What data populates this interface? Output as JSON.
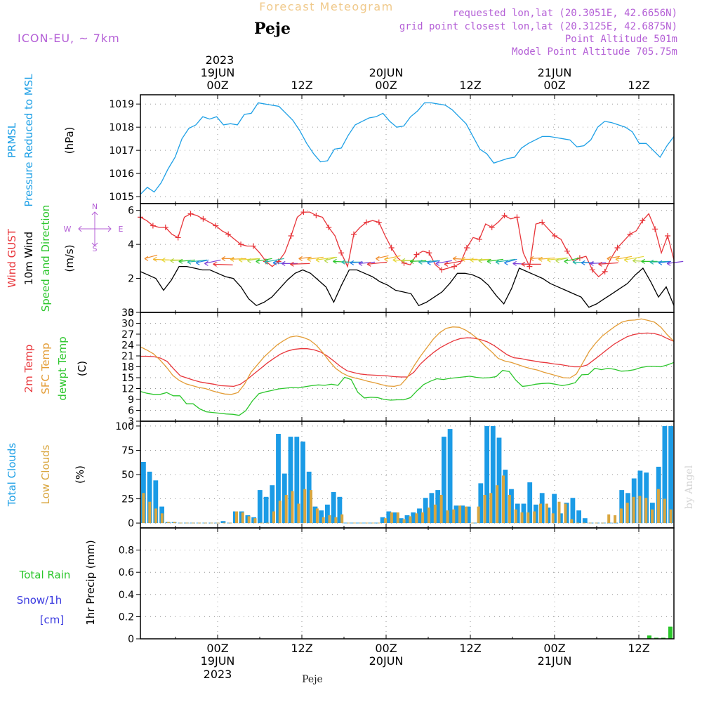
{
  "header": {
    "title": "Forecast Meteogram",
    "location": "Peje",
    "model": "ICON-EU, ~ 7km",
    "requested": "requested lon,lat (20.3051E, 42.6656N)",
    "grid_point": "grid point closest lon,lat (20.3125E, 42.6875N)",
    "point_altitude": "Point Altitude 501m",
    "model_altitude": "Model Point Altitude 705.75m",
    "footer_location": "Peje",
    "watermark": "by Angel"
  },
  "time_axis": {
    "top_year": "2023",
    "labels": [
      {
        "hour": 24,
        "l1": "00Z",
        "l2": "19JUN",
        "l3": "2023"
      },
      {
        "hour": 36,
        "l1": "12Z",
        "l2": "",
        "l3": ""
      },
      {
        "hour": 48,
        "l1": "00Z",
        "l2": "20JUN",
        "l3": ""
      },
      {
        "hour": 60,
        "l1": "12Z",
        "l2": "",
        "l3": ""
      },
      {
        "hour": 72,
        "l1": "00Z",
        "l2": "21JUN",
        "l3": ""
      },
      {
        "hour": 84,
        "l1": "12Z",
        "l2": "",
        "l3": ""
      }
    ],
    "start_hour": 13,
    "end_hour": 89
  },
  "chart_data": [
    {
      "type": "line",
      "name": "pressure",
      "ylabels": [
        "PRMSL",
        "Pressure Reduced to MSL",
        "(hPa)"
      ],
      "ylim": [
        1014.7,
        1019.4
      ],
      "ticks": [
        1015,
        1016,
        1017,
        1018,
        1019
      ],
      "series": [
        {
          "name": "PRMSL",
          "color": "#1ea0e6",
          "values": [
            1015.1,
            1015.4,
            1015.2,
            1015.6,
            1016.2,
            1016.7,
            1017.5,
            1017.95,
            1018.1,
            1018.45,
            1018.35,
            1018.45,
            1018.1,
            1018.15,
            1018.1,
            1018.55,
            1018.6,
            1019.05,
            1019.0,
            1018.95,
            1018.9,
            1018.6,
            1018.3,
            1017.85,
            1017.3,
            1016.85,
            1016.5,
            1016.55,
            1017.05,
            1017.1,
            1017.65,
            1018.1,
            1018.25,
            1018.4,
            1018.45,
            1018.6,
            1018.25,
            1018.0,
            1018.05,
            1018.45,
            1018.7,
            1019.05,
            1019.05,
            1019.0,
            1018.95,
            1018.75,
            1018.45,
            1018.15,
            1017.6,
            1017.05,
            1016.85,
            1016.45,
            1016.55,
            1016.65,
            1016.7,
            1017.1,
            1017.3,
            1017.45,
            1017.6,
            1017.6,
            1017.55,
            1017.5,
            1017.45,
            1017.15,
            1017.2,
            1017.45,
            1018.0,
            1018.25,
            1018.2,
            1018.1,
            1018.0,
            1017.8,
            1017.3,
            1017.3,
            1017.0,
            1016.7,
            1017.2,
            1017.6
          ]
        }
      ]
    },
    {
      "type": "line",
      "name": "wind",
      "ylabels": [
        "Wind GUST",
        "10m Wind",
        "Speed and Direction",
        "(m/s)"
      ],
      "ylim": [
        0,
        6.4
      ],
      "ticks": [
        0,
        2,
        4,
        6
      ],
      "compass": [
        "N",
        "W",
        "E",
        "S"
      ],
      "series": [
        {
          "name": "Wind GUST",
          "color": "#e8353a",
          "values": [
            5.6,
            5.4,
            5.1,
            5.0,
            5.0,
            4.6,
            4.4,
            5.6,
            5.8,
            5.7,
            5.5,
            5.3,
            5.1,
            4.8,
            4.6,
            4.3,
            4.0,
            3.9,
            3.9,
            3.5,
            3.0,
            2.7,
            3.0,
            3.5,
            4.5,
            5.6,
            5.9,
            5.9,
            5.7,
            5.6,
            5.0,
            4.5,
            3.5,
            2.7,
            4.6,
            5.0,
            5.3,
            5.4,
            5.3,
            4.5,
            3.8,
            3.2,
            2.9,
            2.8,
            3.4,
            3.6,
            3.5,
            2.8,
            2.5,
            2.6,
            2.7,
            2.9,
            3.8,
            4.4,
            4.3,
            5.2,
            5.0,
            5.3,
            5.7,
            5.5,
            5.6,
            3.5,
            2.7,
            5.2,
            5.3,
            4.9,
            4.5,
            4.3,
            3.6,
            3.0,
            3.2,
            3.3,
            2.5,
            2.1,
            2.4,
            3.2,
            3.8,
            4.2,
            4.6,
            4.8,
            5.4,
            5.8,
            4.9,
            3.5,
            4.5,
            3.1
          ]
        },
        {
          "name": "10m Wind",
          "color": "#000000",
          "values": [
            2.4,
            2.2,
            2.0,
            1.3,
            1.9,
            2.7,
            2.7,
            2.6,
            2.5,
            2.5,
            2.3,
            2.1,
            2.0,
            1.5,
            0.8,
            0.4,
            0.6,
            0.9,
            1.4,
            1.9,
            2.3,
            2.5,
            2.3,
            1.9,
            1.5,
            0.6,
            1.6,
            2.5,
            2.5,
            2.3,
            2.1,
            1.8,
            1.6,
            1.3,
            1.2,
            1.1,
            0.4,
            0.6,
            0.9,
            1.2,
            1.7,
            2.3,
            2.3,
            2.2,
            2.0,
            1.6,
            1.0,
            0.5,
            1.4,
            2.6,
            2.4,
            2.2,
            2.0,
            1.7,
            1.5,
            1.3,
            1.1,
            0.9,
            0.3,
            0.5,
            0.8,
            1.1,
            1.4,
            1.7,
            2.2,
            2.6,
            1.8,
            0.9,
            1.5,
            0.4
          ]
        }
      ]
    },
    {
      "type": "line",
      "name": "temperature",
      "ylabels": [
        "2m Temp",
        "SFC Temp",
        "dewpt Temp",
        "(C)"
      ],
      "ylim": [
        3,
        33
      ],
      "ticks": [
        3,
        6,
        9,
        12,
        15,
        18,
        21,
        24,
        27,
        30,
        33
      ],
      "series": [
        {
          "name": "2m Temp",
          "color": "#e8353a",
          "values": [
            20.9,
            20.9,
            20.8,
            20.4,
            19.5,
            17.4,
            15.5,
            14.9,
            14.3,
            13.8,
            13.5,
            13.2,
            12.8,
            12.7,
            12.6,
            13.2,
            14.5,
            16.0,
            17.5,
            19.0,
            20.3,
            21.5,
            22.3,
            22.8,
            23.0,
            23.0,
            22.7,
            22.1,
            21.0,
            19.6,
            18.1,
            16.9,
            16.4,
            16.0,
            15.8,
            15.7,
            15.6,
            15.5,
            15.3,
            15.2,
            15.2,
            16.5,
            18.8,
            20.5,
            22.0,
            23.3,
            24.3,
            25.2,
            25.8,
            26.0,
            25.9,
            25.5,
            24.9,
            23.9,
            22.6,
            21.3,
            20.5,
            20.3,
            19.9,
            19.6,
            19.3,
            19.1,
            18.8,
            18.6,
            18.3,
            18.0,
            18.0,
            18.5,
            19.9,
            21.3,
            22.8,
            24.2,
            25.3,
            26.3,
            26.9,
            27.2,
            27.3,
            27.2,
            26.7,
            25.8,
            25.0
          ]
        },
        {
          "name": "SFC Temp",
          "color": "#e39c35",
          "values": [
            23.5,
            22.6,
            21.6,
            19.9,
            17.9,
            15.6,
            14.2,
            13.3,
            12.8,
            12.3,
            12.0,
            11.4,
            10.9,
            10.5,
            10.4,
            10.9,
            13.2,
            16.5,
            18.6,
            20.7,
            22.4,
            24.0,
            25.2,
            26.2,
            26.5,
            26.1,
            25.4,
            24.0,
            22.0,
            19.6,
            17.6,
            16.3,
            15.4,
            14.9,
            14.5,
            14.0,
            13.6,
            13.1,
            12.7,
            12.6,
            13.0,
            15.0,
            18.1,
            20.8,
            23.2,
            25.6,
            27.4,
            28.6,
            29.0,
            28.9,
            28.1,
            26.9,
            25.5,
            23.7,
            22.1,
            20.3,
            19.6,
            19.2,
            18.6,
            18.0,
            17.5,
            17.1,
            16.5,
            16.0,
            15.5,
            15.0,
            14.9,
            16.0,
            19.1,
            22.3,
            24.6,
            26.5,
            27.9,
            29.2,
            30.3,
            30.8,
            30.9,
            31.2,
            30.8,
            30.3,
            28.9,
            26.8,
            25.0
          ]
        },
        {
          "name": "dewpt Temp",
          "color": "#2bc62b",
          "values": [
            11.2,
            10.7,
            10.4,
            10.4,
            10.9,
            10.0,
            10.0,
            7.8,
            7.8,
            6.4,
            5.6,
            5.4,
            5.2,
            5.0,
            4.9,
            4.6,
            5.9,
            8.6,
            10.6,
            11.1,
            11.5,
            11.9,
            12.1,
            12.3,
            12.2,
            12.5,
            12.8,
            13.0,
            12.9,
            13.2,
            12.9,
            15.1,
            14.5,
            11.0,
            9.4,
            9.6,
            9.5,
            9.0,
            8.8,
            8.9,
            8.9,
            9.5,
            11.4,
            13.1,
            14.0,
            14.7,
            14.5,
            14.8,
            15.0,
            15.2,
            15.4,
            15.1,
            14.9,
            15.0,
            15.3,
            17.0,
            16.7,
            14.3,
            12.6,
            12.8,
            13.2,
            13.4,
            13.5,
            13.2,
            12.8,
            13.1,
            13.6,
            15.8,
            15.9,
            17.6,
            17.2,
            17.6,
            17.3,
            16.8,
            16.9,
            17.2,
            17.8,
            18.1,
            18.1,
            18.0,
            18.5,
            19.2
          ]
        }
      ]
    },
    {
      "type": "bar",
      "name": "clouds",
      "ylabels": [
        "Total Clouds",
        "Low Clouds",
        "(%)"
      ],
      "ylim": [
        -5,
        105
      ],
      "ticks": [
        0,
        25,
        50,
        75,
        100
      ],
      "series": [
        {
          "name": "Total Clouds",
          "color": "#1b9be6",
          "values": [
            63,
            53,
            44,
            17,
            1,
            1,
            0,
            0,
            0,
            0,
            0,
            0,
            0,
            2,
            0,
            12,
            12,
            8,
            6,
            34,
            27,
            39,
            92,
            51,
            89,
            89,
            84,
            53,
            17,
            13,
            19,
            32,
            27,
            0,
            0,
            0,
            0,
            0,
            0,
            6,
            12,
            11,
            5,
            8,
            11,
            15,
            26,
            31,
            34,
            89,
            97,
            18,
            18,
            17,
            0,
            41,
            100,
            100,
            88,
            55,
            35,
            20,
            20,
            42,
            19,
            31,
            16,
            30,
            10,
            21,
            26,
            13,
            5,
            0,
            0,
            0,
            0,
            0,
            34,
            31,
            46,
            54,
            52,
            21,
            58,
            100,
            100
          ]
        },
        {
          "name": "Low Clouds",
          "color": "#d9a63f",
          "values": [
            31,
            22,
            15,
            10,
            1,
            1,
            0,
            0,
            0,
            0,
            0,
            0,
            0,
            0,
            0,
            12,
            11,
            7,
            5,
            0,
            0,
            12,
            23,
            29,
            33,
            20,
            35,
            34,
            15,
            6,
            8,
            6,
            9,
            0,
            0,
            0,
            0,
            0,
            0,
            5,
            11,
            11,
            4,
            7,
            10,
            11,
            16,
            19,
            29,
            13,
            14,
            18,
            17,
            0,
            17,
            29,
            31,
            39,
            49,
            29,
            14,
            11,
            11,
            12,
            20,
            20,
            10,
            22,
            20,
            4,
            0,
            0,
            0,
            0,
            0,
            9,
            8,
            15,
            21,
            27,
            28,
            26,
            14,
            35,
            25,
            14
          ]
        }
      ]
    },
    {
      "type": "bar",
      "name": "precip",
      "ylabels": [
        "1hr Precip (mm)"
      ],
      "side_labels": [
        "Total Rain",
        "Snow/1h",
        "[cm]"
      ],
      "ylim": [
        0,
        1.0
      ],
      "ticks": [
        0,
        0.2,
        0.4,
        0.6,
        0.8
      ],
      "series": [
        {
          "name": "Total Rain",
          "color": "#2bc62b",
          "points": [
            {
              "hour": 85.5,
              "value": 0.03
            },
            {
              "hour": 86.5,
              "value": 0.01
            },
            {
              "hour": 87.5,
              "value": 0.01
            },
            {
              "hour": 88.5,
              "value": 0.11
            }
          ]
        }
      ]
    }
  ]
}
